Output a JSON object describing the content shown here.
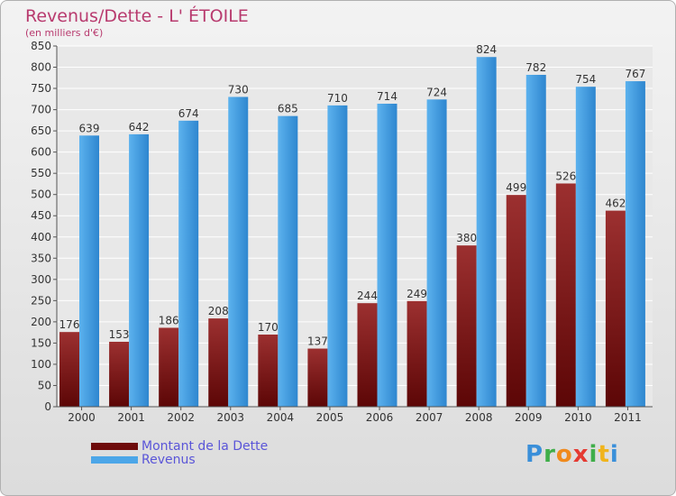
{
  "title": "Revenus/Dette - L' ÉTOILE",
  "subtitle": "(en milliers d'€)",
  "colors": {
    "dette": "#7a1414",
    "revenus": "#4ca6e8",
    "title": "#b83a6e",
    "legend_text": "#5a55d8"
  },
  "logo": {
    "text": "Proxiti",
    "letters": [
      {
        "ch": "P",
        "color": "#3a8fd9"
      },
      {
        "ch": "r",
        "color": "#3fae49"
      },
      {
        "ch": "o",
        "color": "#f08a1c"
      },
      {
        "ch": "x",
        "color": "#e53a32"
      },
      {
        "ch": "i",
        "color": "#3fae49"
      },
      {
        "ch": "t",
        "color": "#f0b41c"
      },
      {
        "ch": "i",
        "color": "#3a8fd9"
      }
    ]
  },
  "chart_data": {
    "type": "bar",
    "categories": [
      "2000",
      "2001",
      "2002",
      "2003",
      "2004",
      "2005",
      "2006",
      "2007",
      "2008",
      "2009",
      "2010",
      "2011"
    ],
    "series": [
      {
        "name": "Montant de la Dette",
        "values": [
          176,
          153,
          186,
          208,
          170,
          137,
          244,
          249,
          380,
          499,
          526,
          462
        ]
      },
      {
        "name": "Revenus",
        "values": [
          639,
          642,
          674,
          730,
          685,
          710,
          714,
          724,
          824,
          782,
          754,
          767
        ]
      }
    ],
    "ylim": [
      0,
      850
    ],
    "yticks": [
      0,
      50,
      100,
      150,
      200,
      250,
      300,
      350,
      400,
      450,
      500,
      550,
      600,
      650,
      700,
      750,
      800,
      850
    ],
    "grid": true,
    "legend": "bottom-left",
    "data_labels": true
  }
}
